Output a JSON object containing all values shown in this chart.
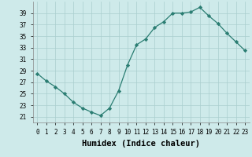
{
  "x": [
    0,
    1,
    2,
    3,
    4,
    5,
    6,
    7,
    8,
    9,
    10,
    11,
    12,
    13,
    14,
    15,
    16,
    17,
    18,
    19,
    20,
    21,
    22,
    23
  ],
  "y": [
    28.5,
    27.2,
    26.2,
    25.0,
    23.5,
    22.5,
    21.8,
    21.2,
    22.5,
    25.5,
    30.0,
    33.5,
    34.5,
    36.5,
    37.5,
    39.0,
    39.0,
    39.2,
    40.0,
    38.5,
    37.2,
    35.5,
    34.0,
    32.5
  ],
  "line_color": "#2a7d72",
  "marker": "D",
  "marker_size": 2.2,
  "bg_color": "#ceeaea",
  "grid_color": "#aacece",
  "xlabel": "Humidex (Indice chaleur)",
  "ylim": [
    20,
    41
  ],
  "xlim": [
    -0.5,
    23.5
  ],
  "yticks": [
    21,
    23,
    25,
    27,
    29,
    31,
    33,
    35,
    37,
    39
  ],
  "xtick_labels": [
    "0",
    "1",
    "2",
    "3",
    "4",
    "5",
    "6",
    "7",
    "8",
    "9",
    "10",
    "11",
    "12",
    "13",
    "14",
    "15",
    "16",
    "17",
    "18",
    "19",
    "20",
    "21",
    "22",
    "23"
  ],
  "tick_fontsize": 5.5,
  "label_fontsize": 7.5
}
